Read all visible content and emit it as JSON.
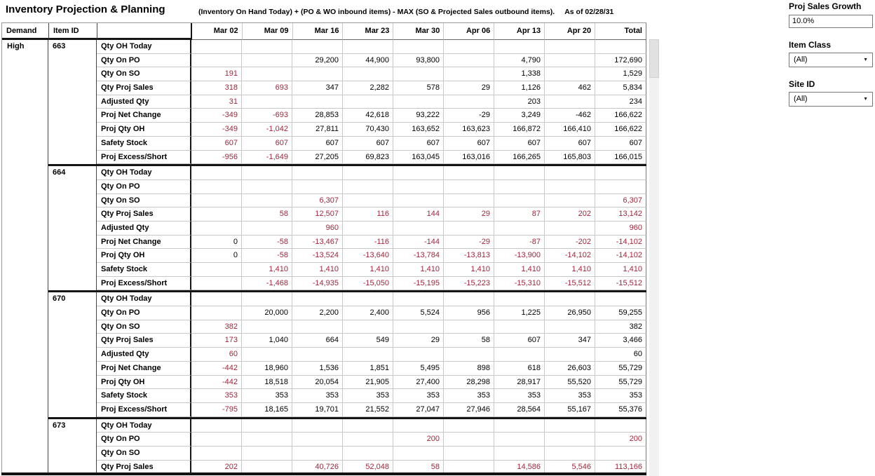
{
  "title": "Inventory Projection & Planning",
  "subtitle": "(Inventory On Hand Today) + (PO & WO inbound items) - MAX (SO & Projected Sales outbound items).",
  "as_of": "As of 02/28/31",
  "colors": {
    "alert": "#a2253a"
  },
  "controls": {
    "proj_sales_growth_label": "Proj Sales Growth",
    "proj_sales_growth_value": "10.0%",
    "item_class_label": "Item Class",
    "item_class_value": "(All)",
    "site_id_label": "Site ID",
    "site_id_value": "(All)"
  },
  "table": {
    "corner_headers": [
      "Demand",
      "Item ID",
      ""
    ],
    "week_headers": [
      "Mar 02",
      "Mar 09",
      "Mar 16",
      "Mar 23",
      "Mar 30",
      "Apr 06",
      "Apr 13",
      "Apr 20",
      "Total"
    ],
    "demand_group": "High",
    "metric_labels": [
      "Qty OH Today",
      "Qty On PO",
      "Qty On SO",
      "Qty Proj Sales",
      "Adjusted Qty",
      "Proj Net Change",
      "Proj Qty OH",
      "Safety Stock",
      "Proj Excess/Short"
    ],
    "blocks": [
      {
        "item_id": "663",
        "red_cols": [
          0,
          1
        ],
        "rows": [
          [
            "",
            "",
            "",
            "",
            "",
            "",
            "",
            "",
            ""
          ],
          [
            "",
            "",
            "29,200",
            "44,900",
            "93,800",
            "",
            "4,790",
            "",
            "172,690"
          ],
          [
            "191",
            "",
            "",
            "",
            "",
            "",
            "1,338",
            "",
            "1,529"
          ],
          [
            "318",
            "693",
            "347",
            "2,282",
            "578",
            "29",
            "1,126",
            "462",
            "5,834"
          ],
          [
            "31",
            "",
            "",
            "",
            "",
            "",
            "203",
            "",
            "234"
          ],
          [
            "-349",
            "-693",
            "28,853",
            "42,618",
            "93,222",
            "-29",
            "3,249",
            "-462",
            "166,622"
          ],
          [
            "-349",
            "-1,042",
            "27,811",
            "70,430",
            "163,652",
            "163,623",
            "166,872",
            "166,410",
            "166,622"
          ],
          [
            "607",
            "607",
            "607",
            "607",
            "607",
            "607",
            "607",
            "607",
            "607"
          ],
          [
            "-956",
            "-1,649",
            "27,205",
            "69,823",
            "163,045",
            "163,016",
            "166,265",
            "165,803",
            "166,015"
          ]
        ]
      },
      {
        "item_id": "664",
        "red_cols": [
          1,
          2,
          3,
          4,
          5,
          6,
          7,
          8
        ],
        "rows": [
          [
            "",
            "",
            "",
            "",
            "",
            "",
            "",
            "",
            ""
          ],
          [
            "",
            "",
            "",
            "",
            "",
            "",
            "",
            "",
            ""
          ],
          [
            "",
            "",
            "6,307",
            "",
            "",
            "",
            "",
            "",
            "6,307"
          ],
          [
            "",
            "58",
            "12,507",
            "116",
            "144",
            "29",
            "87",
            "202",
            "13,142"
          ],
          [
            "",
            "",
            "960",
            "",
            "",
            "",
            "",
            "",
            "960"
          ],
          [
            "0",
            "-58",
            "-13,467",
            "-116",
            "-144",
            "-29",
            "-87",
            "-202",
            "-14,102"
          ],
          [
            "0",
            "-58",
            "-13,524",
            "-13,640",
            "-13,784",
            "-13,813",
            "-13,900",
            "-14,102",
            "-14,102"
          ],
          [
            "",
            "1,410",
            "1,410",
            "1,410",
            "1,410",
            "1,410",
            "1,410",
            "1,410",
            "1,410"
          ],
          [
            "",
            "-1,468",
            "-14,935",
            "-15,050",
            "-15,195",
            "-15,223",
            "-15,310",
            "-15,512",
            "-15,512"
          ]
        ]
      },
      {
        "item_id": "670",
        "red_cols": [
          0
        ],
        "rows": [
          [
            "",
            "",
            "",
            "",
            "",
            "",
            "",
            "",
            ""
          ],
          [
            "",
            "20,000",
            "2,200",
            "2,400",
            "5,524",
            "956",
            "1,225",
            "26,950",
            "59,255"
          ],
          [
            "382",
            "",
            "",
            "",
            "",
            "",
            "",
            "",
            "382"
          ],
          [
            "173",
            "1,040",
            "664",
            "549",
            "29",
            "58",
            "607",
            "347",
            "3,466"
          ],
          [
            "60",
            "",
            "",
            "",
            "",
            "",
            "",
            "",
            "60"
          ],
          [
            "-442",
            "18,960",
            "1,536",
            "1,851",
            "5,495",
            "898",
            "618",
            "26,603",
            "55,729"
          ],
          [
            "-442",
            "18,518",
            "20,054",
            "21,905",
            "27,400",
            "28,298",
            "28,917",
            "55,520",
            "55,729"
          ],
          [
            "353",
            "353",
            "353",
            "353",
            "353",
            "353",
            "353",
            "353",
            "353"
          ],
          [
            "-795",
            "18,165",
            "19,701",
            "21,552",
            "27,047",
            "27,946",
            "28,564",
            "55,167",
            "55,376"
          ]
        ]
      },
      {
        "item_id": "673",
        "red_cols": [
          0,
          1,
          2,
          3,
          4,
          5,
          6,
          7,
          8
        ],
        "rows": [
          [
            "",
            "",
            "",
            "",
            "",
            "",
            "",
            "",
            ""
          ],
          [
            "",
            "",
            "",
            "",
            "200",
            "",
            "",
            "",
            "200"
          ],
          [
            "",
            "",
            "",
            "",
            "",
            "",
            "",
            "",
            ""
          ],
          [
            "202",
            "",
            "40,726",
            "52,048",
            "58",
            "",
            "14,586",
            "5,546",
            "113,166"
          ]
        ]
      }
    ]
  }
}
